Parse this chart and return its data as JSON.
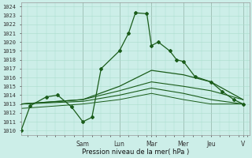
{
  "xlabel": "Pression niveau de la mer( hPa )",
  "ylim": [
    1009.5,
    1024.5
  ],
  "yticks": [
    1010,
    1011,
    1012,
    1013,
    1014,
    1015,
    1016,
    1017,
    1018,
    1019,
    1020,
    1021,
    1022,
    1023,
    1024
  ],
  "day_labels": [
    "Sam",
    "Lun",
    "Mar",
    "Mer",
    "Jeu",
    "V"
  ],
  "day_x": [
    0.27,
    0.43,
    0.57,
    0.71,
    0.83,
    0.97
  ],
  "bg_color": "#cceee8",
  "grid_color": "#aaddcc",
  "line_color": "#1a5c1a",
  "xlim": [
    0,
    1.0
  ],
  "series1_x": [
    0.0,
    0.04,
    0.11,
    0.16,
    0.22,
    0.27,
    0.31,
    0.35,
    0.43,
    0.47,
    0.5,
    0.55,
    0.57,
    0.6,
    0.65,
    0.68,
    0.71,
    0.76,
    0.83,
    0.88,
    0.93,
    0.97
  ],
  "series1_y": [
    1010.0,
    1012.8,
    1013.8,
    1014.0,
    1012.7,
    1011.0,
    1011.5,
    1017.0,
    1019.0,
    1021.0,
    1023.3,
    1023.2,
    1019.6,
    1020.0,
    1019.0,
    1018.0,
    1017.8,
    1016.1,
    1015.5,
    1014.4,
    1013.5,
    1013.0
  ],
  "line2_x": [
    0.0,
    0.27,
    0.43,
    0.57,
    0.71,
    0.83,
    0.97
  ],
  "line2_y": [
    1013.0,
    1013.5,
    1015.0,
    1016.8,
    1016.3,
    1015.5,
    1013.5
  ],
  "line3_x": [
    0.0,
    0.27,
    0.43,
    0.57,
    0.71,
    0.83,
    0.97
  ],
  "line3_y": [
    1013.0,
    1013.5,
    1014.5,
    1015.5,
    1015.0,
    1014.5,
    1013.5
  ],
  "line4_x": [
    0.0,
    0.27,
    0.43,
    0.57,
    0.71,
    0.83,
    0.97
  ],
  "line4_y": [
    1013.0,
    1013.3,
    1014.0,
    1014.8,
    1014.2,
    1013.5,
    1013.0
  ],
  "line5_x": [
    0.0,
    0.27,
    0.43,
    0.57,
    0.71,
    0.83,
    0.97
  ],
  "line5_y": [
    1012.5,
    1013.0,
    1013.5,
    1014.2,
    1013.5,
    1013.0,
    1013.0
  ]
}
